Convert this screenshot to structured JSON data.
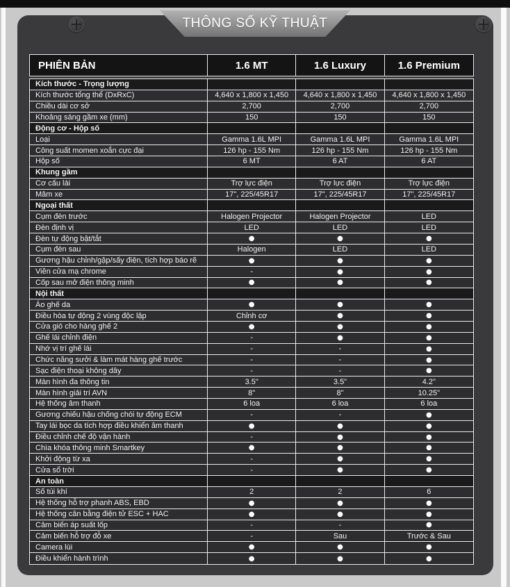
{
  "banner": {
    "title": "THÔNG SỐ KỸ THUẬT"
  },
  "symbols": {
    "included": "●",
    "not_available": "-"
  },
  "colors": {
    "page_bg": "#c9c9c9",
    "top_bar": "#0e0e0e",
    "panel": "#3a3a3c",
    "header_bg": "#141414",
    "row_bg": "#2d2d2f",
    "section_bg": "#1a1a1a",
    "border": "#ececec"
  },
  "table": {
    "header": {
      "label": "PHIÊN BẢN",
      "columns": [
        "1.6 MT",
        "1.6 Luxury",
        "1.6 Premium"
      ]
    },
    "rows": [
      {
        "type": "section",
        "label": "Kích thước - Trọng lượng"
      },
      {
        "type": "data",
        "label": "Kích thước tổng thể (DxRxC)",
        "values": [
          "4,640 x 1,800 x 1,450",
          "4,640 x 1,800 x 1,450",
          "4,640 x 1,800 x 1,450"
        ]
      },
      {
        "type": "data",
        "label": "Chiều dài cơ sở",
        "values": [
          "2,700",
          "2,700",
          "2,700"
        ]
      },
      {
        "type": "data",
        "label": "Khoảng sáng gầm xe (mm)",
        "values": [
          "150",
          "150",
          "150"
        ]
      },
      {
        "type": "section",
        "label": "Động cơ - Hộp số"
      },
      {
        "type": "data",
        "label": "Loại",
        "values": [
          "Gamma 1.6L MPI",
          "Gamma 1.6L MPI",
          "Gamma 1.6L MPI"
        ]
      },
      {
        "type": "data",
        "label": "Công suất momen xoắn cực đại",
        "values": [
          "126 hp - 155 Nm",
          "126 hp - 155 Nm",
          "126 hp - 155 Nm"
        ]
      },
      {
        "type": "data",
        "label": "Hộp số",
        "values": [
          "6 MT",
          "6 AT",
          "6 AT"
        ]
      },
      {
        "type": "section",
        "label": "Khung gầm"
      },
      {
        "type": "data",
        "label": "Cơ cấu lái",
        "values": [
          "Trợ lực điện",
          "Trợ lực điện",
          "Trợ lực điện"
        ]
      },
      {
        "type": "data",
        "label": "Mâm xe",
        "values": [
          "17\", 225/45R17",
          "17\", 225/45R17",
          "17\", 225/45R17"
        ]
      },
      {
        "type": "section",
        "label": "Ngoại thất"
      },
      {
        "type": "data",
        "label": "Cụm đèn trước",
        "values": [
          "Halogen Projector",
          "Halogen Projector",
          "LED"
        ]
      },
      {
        "type": "data",
        "label": "Đèn định vị",
        "values": [
          "LED",
          "LED",
          "LED"
        ]
      },
      {
        "type": "data",
        "label": "Đèn tự động bật/tắt",
        "values": [
          "●",
          "●",
          "●"
        ]
      },
      {
        "type": "data",
        "label": "Cụm đèn sau",
        "values": [
          "Halogen",
          "LED",
          "LED"
        ]
      },
      {
        "type": "data",
        "label": "Gương hậu chỉnh/gập/sấy điện, tích hợp báo rẽ",
        "values": [
          "●",
          "●",
          "●"
        ]
      },
      {
        "type": "data",
        "label": "Viền cửa mạ chrome",
        "values": [
          "-",
          "●",
          "●"
        ]
      },
      {
        "type": "data",
        "label": "Cốp sau mở điện thông minh",
        "values": [
          "●",
          "●",
          "●"
        ]
      },
      {
        "type": "section",
        "label": "Nội thất"
      },
      {
        "type": "data",
        "label": "Áo ghế da",
        "values": [
          "●",
          "●",
          "●"
        ]
      },
      {
        "type": "data",
        "label": "Điều hòa tự động 2 vùng độc lập",
        "values": [
          "Chỉnh cơ",
          "●",
          "●"
        ]
      },
      {
        "type": "data",
        "label": "Cửa gió cho hàng ghế 2",
        "values": [
          "●",
          "●",
          "●"
        ]
      },
      {
        "type": "data",
        "label": "Ghế lái chỉnh điện",
        "values": [
          "-",
          "●",
          "●"
        ]
      },
      {
        "type": "data",
        "label": "Nhớ vị trí ghế lái",
        "values": [
          "-",
          "-",
          "●"
        ]
      },
      {
        "type": "data",
        "label": "Chức năng sưởi & làm mát hàng ghế trước",
        "values": [
          "-",
          "-",
          "●"
        ]
      },
      {
        "type": "data",
        "label": "Sạc điện thoại không dây",
        "values": [
          "-",
          "-",
          "●"
        ]
      },
      {
        "type": "data",
        "label": "Màn hình đa thông tin",
        "values": [
          "3.5\"",
          "3.5\"",
          "4.2\""
        ]
      },
      {
        "type": "data",
        "label": "Màn hình giải trí AVN",
        "values": [
          "8\"",
          "8\"",
          "10.25\""
        ]
      },
      {
        "type": "data",
        "label": "Hệ thống âm thanh",
        "values": [
          "6 loa",
          "6 loa",
          "6 loa"
        ]
      },
      {
        "type": "data",
        "label": "Gương chiếu hậu chống chói tự động ECM",
        "values": [
          "-",
          "-",
          "●"
        ]
      },
      {
        "type": "data",
        "label": "Tay lái bọc da tích hợp điều khiển âm thanh",
        "values": [
          "●",
          "●",
          "●"
        ]
      },
      {
        "type": "data",
        "label": "Điều chỉnh chế độ vận hành",
        "values": [
          "-",
          "●",
          "●"
        ]
      },
      {
        "type": "data",
        "label": "Chìa khóa thông minh Smartkey",
        "values": [
          "●",
          "●",
          "●"
        ]
      },
      {
        "type": "data",
        "label": "Khởi động từ xa",
        "values": [
          "-",
          "●",
          "●"
        ]
      },
      {
        "type": "data",
        "label": "Cửa sổ trời",
        "values": [
          "-",
          "●",
          "●"
        ]
      },
      {
        "type": "section",
        "label": "An toàn"
      },
      {
        "type": "data",
        "label": "Số túi khí",
        "values": [
          "2",
          "2",
          "6"
        ]
      },
      {
        "type": "data",
        "label": "Hệ thống hỗ trợ phanh ABS, EBD",
        "values": [
          "●",
          "●",
          "●"
        ]
      },
      {
        "type": "data",
        "label": "Hệ thống cân bằng điện tử ESC + HAC",
        "values": [
          "●",
          "●",
          "●"
        ]
      },
      {
        "type": "data",
        "label": "Cảm biến áp suất lốp",
        "values": [
          "-",
          "-",
          "●"
        ]
      },
      {
        "type": "data",
        "label": "Cảm biến hỗ trợ đỗ xe",
        "values": [
          "-",
          "Sau",
          "Trước & Sau"
        ]
      },
      {
        "type": "data",
        "label": "Camera lùi",
        "values": [
          "●",
          "●",
          "●"
        ]
      },
      {
        "type": "data",
        "label": "Điều khiển hành trình",
        "values": [
          "●",
          "●",
          "●"
        ]
      }
    ]
  }
}
